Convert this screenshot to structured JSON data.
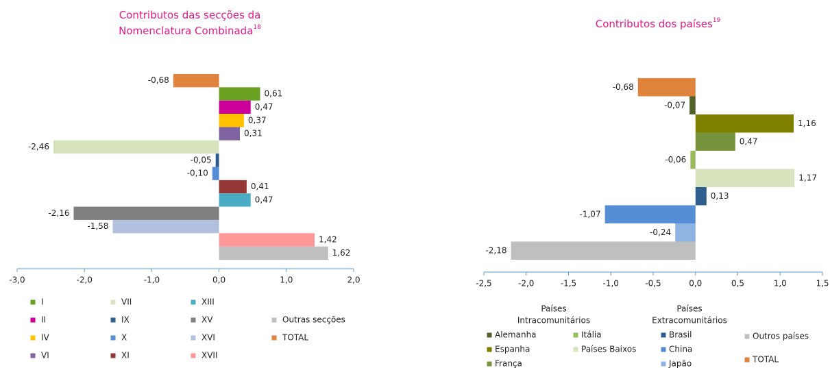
{
  "chart_data": [
    {
      "type": "bar",
      "orientation": "horizontal",
      "title": [
        "Contributos das secções da",
        "Nomenclatura Combinada"
      ],
      "title_superscript": "18",
      "categories": [
        "TOTAL",
        "I",
        "II",
        "IV",
        "VI",
        "VII",
        "IX",
        "X",
        "XI",
        "XIII",
        "XV",
        "XVI",
        "XVII",
        "Outras secções"
      ],
      "values": [
        -0.68,
        0.61,
        0.47,
        0.37,
        0.31,
        -2.46,
        -0.05,
        -0.1,
        0.41,
        0.47,
        -2.16,
        -1.58,
        1.42,
        1.62
      ],
      "value_labels": [
        "-0,68",
        "0,61",
        "0,47",
        "0,37",
        "0,31",
        "-2,46",
        "-0,05",
        "-0,10",
        "0,41",
        "0,47",
        "-2,16",
        "-1,58",
        "1,42",
        "1,62"
      ],
      "colors": [
        "#E0833C",
        "#6AA121",
        "#CC0099",
        "#FFC000",
        "#8064A2",
        "#D7E4BD",
        "#2E5E8E",
        "#558ED5",
        "#953735",
        "#4BACC6",
        "#7F7F7F",
        "#B3C0DD",
        "#FF9999",
        "#BFBFBF"
      ],
      "xlim": [
        -3,
        2
      ],
      "xticks": [
        {
          "value": -3,
          "label": "-3,0"
        },
        {
          "value": -2,
          "label": "-2,0"
        },
        {
          "value": -1,
          "label": "-1,0"
        },
        {
          "value": 0,
          "label": "0,0"
        },
        {
          "value": 1,
          "label": "1,0"
        },
        {
          "value": 2,
          "label": "2,0"
        }
      ]
    },
    {
      "type": "bar",
      "orientation": "horizontal",
      "title": [
        "Contributos dos países"
      ],
      "title_superscript": "19",
      "legend_groups": [
        [
          "Países",
          "Intracomunitários"
        ],
        [
          "Países",
          "Extracomunitários"
        ]
      ],
      "categories": [
        "TOTAL",
        "Alemanha",
        "Espanha",
        "França",
        "Itália",
        "Países Baixos",
        "Brasil",
        "China",
        "Japão",
        "Outros países"
      ],
      "values": [
        -0.68,
        -0.07,
        1.16,
        0.47,
        -0.06,
        1.17,
        0.13,
        -1.07,
        -0.24,
        -2.18
      ],
      "value_labels": [
        "-0,68",
        "-0,07",
        "1,16",
        "0,47",
        "-0,06",
        "1,17",
        "0,13",
        "-1,07",
        "-0,24",
        "-2,18"
      ],
      "colors": [
        "#E0833C",
        "#4F6228",
        "#7F7F00",
        "#77933C",
        "#9BBB59",
        "#D7E4BD",
        "#2E5E8E",
        "#558ED5",
        "#8EB4E3",
        "#BFBFBF"
      ],
      "xlim": [
        -2.5,
        1.5
      ],
      "xticks": [
        {
          "value": -2.5,
          "label": "-2,5"
        },
        {
          "value": -2,
          "label": "-2,0"
        },
        {
          "value": -1.5,
          "label": "-1,5"
        },
        {
          "value": -1,
          "label": "-1,0"
        },
        {
          "value": -0.5,
          "label": "-0,5"
        },
        {
          "value": 0,
          "label": "0,0"
        },
        {
          "value": 0.5,
          "label": "0,5"
        },
        {
          "value": 1,
          "label": "1,0"
        },
        {
          "value": 1.5,
          "label": "1,5"
        }
      ]
    }
  ]
}
